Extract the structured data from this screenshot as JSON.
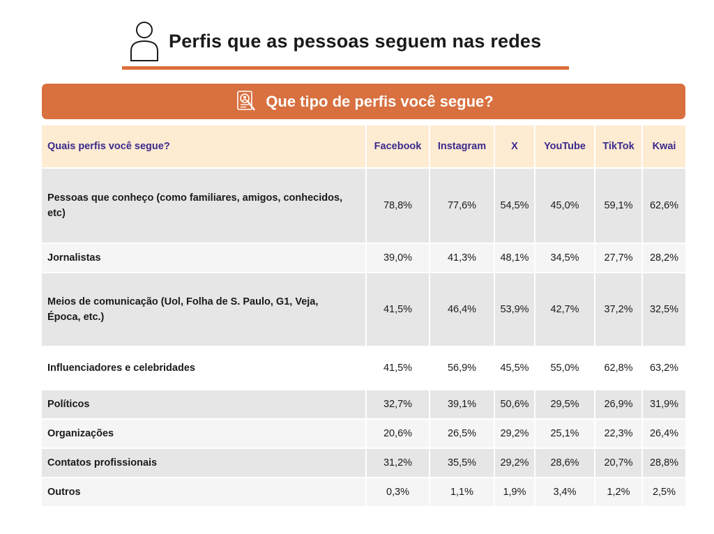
{
  "header": {
    "title": "Perfis que as pessoas seguem nas redes",
    "icon": "person-outline-icon"
  },
  "banner": {
    "title": "Que tipo de perfis você segue?",
    "icon": "profile-document-search-icon",
    "color": "#d8703f"
  },
  "table": {
    "header_label": "Quais perfis você segue?",
    "columns": [
      "Facebook",
      "Instagram",
      "X",
      "YouTube",
      "TikTok",
      "Kwai"
    ],
    "rows": [
      {
        "label": "Pessoas que conheço (como familiares, amigos, conhecidos, etc)",
        "values": [
          "78,8%",
          "77,6%",
          "54,5%",
          "45,0%",
          "59,1%",
          "62,6%"
        ]
      },
      {
        "label": "Jornalistas",
        "values": [
          "39,0%",
          "41,3%",
          "48,1%",
          "34,5%",
          "27,7%",
          "28,2%"
        ]
      },
      {
        "label": "Meios de comunicação (Uol, Folha de S. Paulo, G1, Veja, Época, etc.)",
        "values": [
          "41,5%",
          "46,4%",
          "53,9%",
          "42,7%",
          "37,2%",
          "32,5%"
        ]
      },
      {
        "label": "Influenciadores e celebridades",
        "values": [
          "41,5%",
          "56,9%",
          "45,5%",
          "55,0%",
          "62,8%",
          "63,2%"
        ]
      },
      {
        "label": "Políticos",
        "values": [
          "32,7%",
          "39,1%",
          "50,6%",
          "29,5%",
          "26,9%",
          "31,9%"
        ]
      },
      {
        "label": "Organizações",
        "values": [
          "20,6%",
          "26,5%",
          "29,2%",
          "25,1%",
          "22,3%",
          "26,4%"
        ]
      },
      {
        "label": "Contatos profissionais",
        "values": [
          "31,2%",
          "35,5%",
          "29,2%",
          "28,6%",
          "20,7%",
          "28,8%"
        ]
      },
      {
        "label": "Outros",
        "values": [
          "0,3%",
          "1,1%",
          "1,9%",
          "3,4%",
          "1,2%",
          "2,5%"
        ]
      }
    ]
  },
  "colors": {
    "accent": "#dc6f3b",
    "header_row": "#fdebd2",
    "header_text": "#3a2a8c"
  }
}
